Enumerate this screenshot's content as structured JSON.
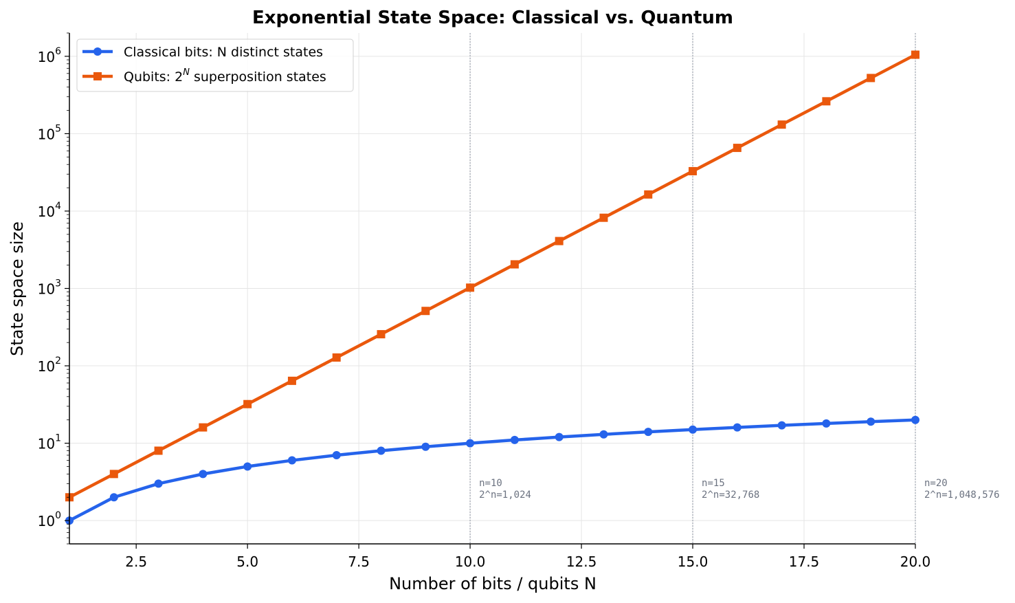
{
  "chart_data": {
    "type": "line",
    "title": "Exponential State Space: Classical vs. Quantum",
    "xlabel": "Number of bits / qubits  N",
    "ylabel": "State space size",
    "xlim": [
      1,
      20
    ],
    "ylim": [
      0.5,
      2000000
    ],
    "yscale": "log",
    "grid": true,
    "legend_position": "top-left",
    "x": [
      1,
      2,
      3,
      4,
      5,
      6,
      7,
      8,
      9,
      10,
      11,
      12,
      13,
      14,
      15,
      16,
      17,
      18,
      19,
      20
    ],
    "x_ticks": [
      2.5,
      5.0,
      7.5,
      10.0,
      12.5,
      15.0,
      17.5,
      20.0
    ],
    "x_tick_labels": [
      "2.5",
      "5.0",
      "7.5",
      "10.0",
      "12.5",
      "15.0",
      "17.5",
      "20.0"
    ],
    "y_ticks": [
      1,
      10,
      100,
      1000,
      10000,
      100000,
      1000000
    ],
    "y_tick_bases": [
      "10",
      "10",
      "10",
      "10",
      "10",
      "10",
      "10"
    ],
    "y_tick_exps": [
      "0",
      "1",
      "2",
      "3",
      "4",
      "5",
      "6"
    ],
    "series": [
      {
        "name_main": "Classical bits: N distinct states",
        "color": "#2563eb",
        "marker": "circle",
        "values": [
          1,
          2,
          3,
          4,
          5,
          6,
          7,
          8,
          9,
          10,
          11,
          12,
          13,
          14,
          15,
          16,
          17,
          18,
          19,
          20
        ]
      },
      {
        "name_pre": "Qubits: 2",
        "name_sup": "N",
        "name_post": " superposition states",
        "color": "#ea580c",
        "marker": "square",
        "values": [
          2,
          4,
          8,
          16,
          32,
          64,
          128,
          256,
          512,
          1024,
          2048,
          4096,
          8192,
          16384,
          32768,
          65536,
          131072,
          262144,
          524288,
          1048576
        ]
      }
    ],
    "annotations": [
      {
        "x": 10,
        "line1": "n=10",
        "line2": "2^n=1,024"
      },
      {
        "x": 15,
        "line1": "n=15",
        "line2": "2^n=32,768"
      },
      {
        "x": 20,
        "line1": "n=20",
        "line2": "2^n=1,048,576"
      }
    ]
  }
}
